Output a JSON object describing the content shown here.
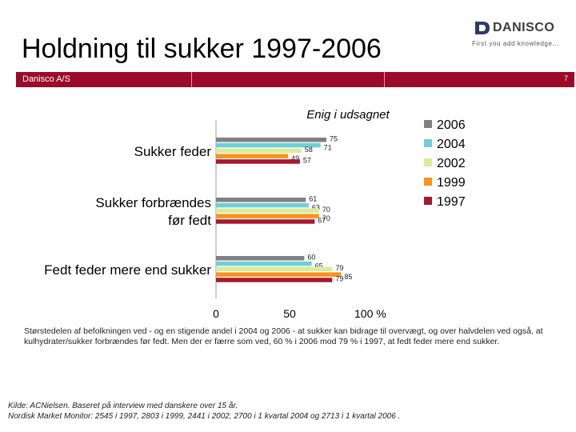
{
  "header": {
    "title": "Holdning til sukker 1997-2006",
    "logo_text": "DANISCO",
    "logo_tagline": "First you add knowledge...",
    "company": "Danisco A/S",
    "page_number": "7"
  },
  "colors": {
    "brand_red": "#9c0a2a",
    "series_2006": "#808080",
    "series_2004": "#6fcfd8",
    "series_2002": "#d9ec9a",
    "series_1999": "#f7941d",
    "series_1997": "#a6192e"
  },
  "chart_data": {
    "type": "bar",
    "orientation": "horizontal",
    "title": "Enig i udsagnet",
    "categories": [
      "Sukker feder",
      "Sukker forbrændes før fedt",
      "Fedt feder mere end sukker"
    ],
    "category_lines": [
      [
        "Sukker feder"
      ],
      [
        "Sukker forbrændes",
        "før fedt"
      ],
      [
        "Fedt feder mere end sukker"
      ]
    ],
    "series": [
      {
        "name": "2006",
        "values": [
          75,
          61,
          60
        ]
      },
      {
        "name": "2004",
        "values": [
          71,
          63,
          65
        ]
      },
      {
        "name": "2002",
        "values": [
          58,
          70,
          79
        ]
      },
      {
        "name": "1999",
        "values": [
          49,
          70,
          85
        ]
      },
      {
        "name": "1997",
        "values": [
          57,
          67,
          79
        ]
      }
    ],
    "xlim": [
      0,
      100
    ],
    "xticks": [
      "0",
      "50",
      "100 %"
    ],
    "legend_position": "right"
  },
  "caption": "Størstedelen af befolkningen ved - og en stigende andel i 2004 og 2006 - at sukker kan bidrage til overvægt, og over halvdelen ved også, at kulhydrater/sukker forbrændes før fedt. Men der er færre som ved, 60 % i 2006 mod 79 % i 1997, at fedt feder mere end sukker.",
  "source": {
    "line1": "Kilde: ACNielsen. Baseret på interview med danskere over 15 år.",
    "line2": "Nordisk Market Monitor: 2545 i 1997, 2803 i 1999, 2441 i 2002, 2700 i 1 kvartal 2004 og 2713 i 1 kvartal 2006 ."
  }
}
